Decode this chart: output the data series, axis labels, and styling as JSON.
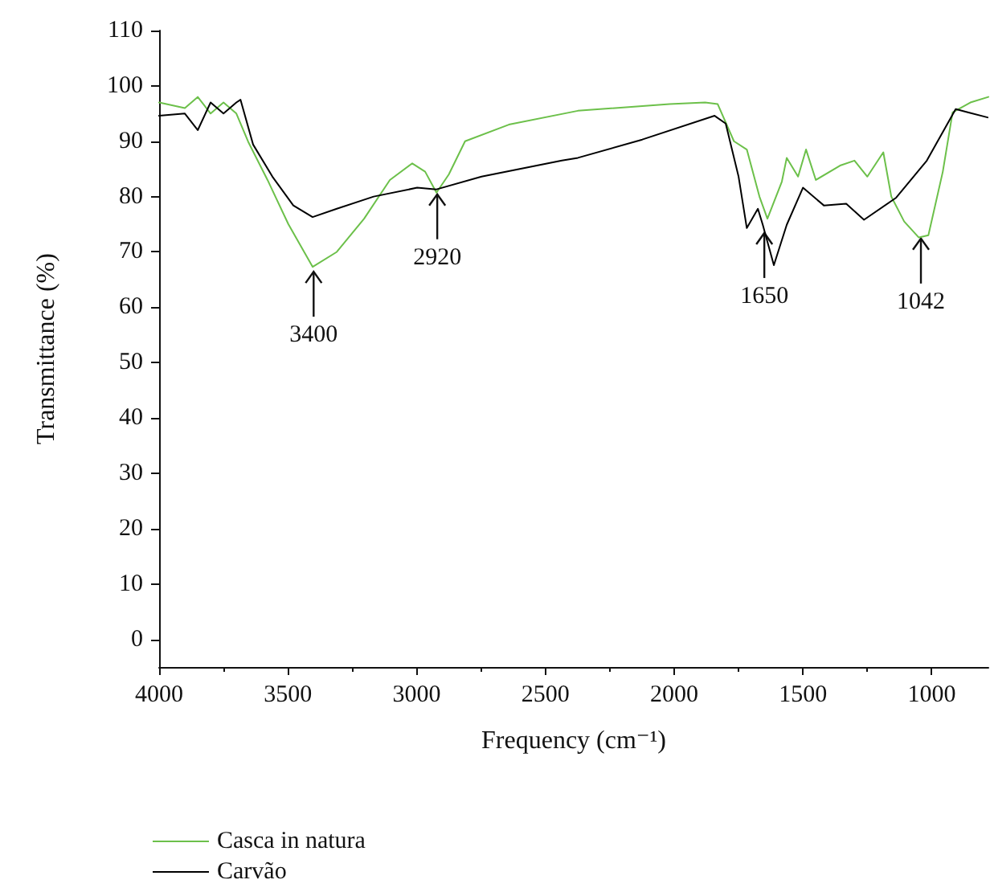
{
  "chart_data": {
    "type": "line",
    "xlabel": "Frequency (cm⁻¹)",
    "ylabel": "Transmittance (%)",
    "xlim": [
      4000,
      780
    ],
    "xticks": [
      4000,
      3500,
      3000,
      2500,
      2000,
      1500,
      1000
    ],
    "ylim": [
      -5,
      110
    ],
    "yticks": [
      0,
      10,
      20,
      30,
      40,
      50,
      60,
      70,
      80,
      90,
      100,
      110
    ],
    "grid": false,
    "legend": "bottom left",
    "marker": "none",
    "line_style": "solid",
    "annotations": [
      {
        "text": "3400",
        "x": 3400,
        "y": 67
      },
      {
        "text": "2920",
        "x": 2920,
        "y": 81
      },
      {
        "text": "1650",
        "x": 1650,
        "y": 74
      },
      {
        "text": "1042",
        "x": 1042,
        "y": 73
      }
    ],
    "series": [
      {
        "name": "Casca in natura",
        "color": "#6cc04a",
        "x": [
          4000,
          3900,
          3850,
          3800,
          3750,
          3700,
          3654,
          3579,
          3498,
          3404,
          3310,
          3204,
          3104,
          3017,
          2967,
          2923,
          2875,
          2812,
          2642,
          2374,
          2018,
          1880,
          1831,
          1768,
          1718,
          1669,
          1638,
          1582,
          1563,
          1519,
          1488,
          1450,
          1356,
          1300,
          1250,
          1188,
          1157,
          1107,
          1050,
          1013,
          957,
          919,
          850,
          780
        ],
        "values": [
          97,
          96,
          98,
          95,
          97,
          95,
          89.9,
          83,
          75,
          67.3,
          70,
          76,
          83,
          86,
          84.5,
          80.7,
          84,
          90,
          93,
          95.5,
          96.7,
          97,
          96.7,
          90,
          88.5,
          80,
          76,
          82.7,
          87,
          83.6,
          88.5,
          83,
          85.6,
          86.5,
          83.6,
          88,
          80,
          75.5,
          72.6,
          73,
          84.5,
          95.2,
          97,
          98
        ]
      },
      {
        "name": "Carvão",
        "color": "#000000",
        "x": [
          4000,
          3900,
          3850,
          3800,
          3750,
          3700,
          3684,
          3635,
          3560,
          3479,
          3404,
          3310,
          3167,
          2998,
          2923,
          2748,
          2436,
          2374,
          2124,
          1843,
          1800,
          1750,
          1718,
          1675,
          1656,
          1613,
          1563,
          1500,
          1419,
          1332,
          1263,
          1138,
          1019,
          907,
          857,
          783
        ],
        "values": [
          94.6,
          95,
          92,
          97,
          95,
          97,
          97.5,
          89.4,
          83.6,
          78.4,
          76.3,
          77.8,
          80,
          81.6,
          81.3,
          83.6,
          86.5,
          87,
          90.3,
          94.6,
          93.2,
          83.6,
          74.3,
          77.8,
          74.9,
          67.6,
          74.9,
          81.6,
          78.4,
          78.7,
          75.8,
          79.8,
          86.5,
          95.8,
          95.2,
          94.3
        ]
      }
    ]
  }
}
